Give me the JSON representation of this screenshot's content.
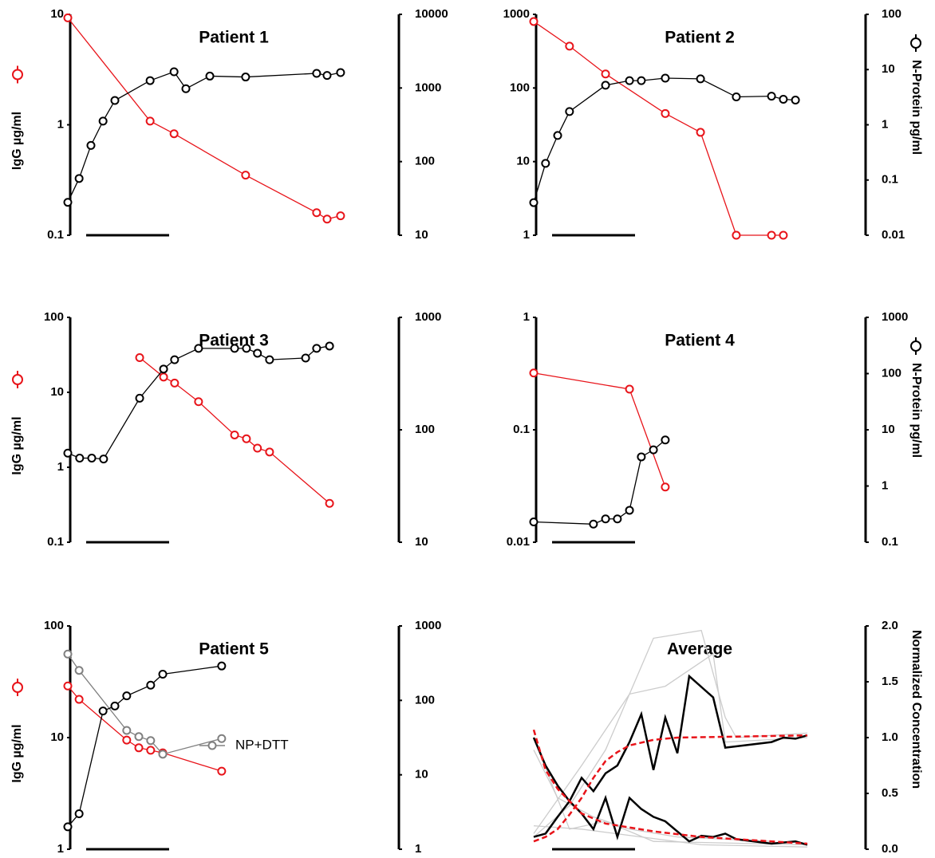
{
  "chart_data": [
    {
      "type": "line",
      "title": "Patient 1",
      "ylabel": "IgG µg/ml",
      "log_scale": true,
      "xlim": [
        0,
        100
      ],
      "ylim": [
        0.1,
        10
      ],
      "yticks": [
        0.1,
        1,
        10
      ],
      "y2lim": [
        10,
        10000
      ],
      "y2ticks": [
        10,
        100,
        1000,
        10000
      ],
      "series": [
        {
          "color": "#e8141a",
          "marker": "circle",
          "x": [
            0,
            29.9,
            38.6,
            64.6,
            90.4,
            94.2,
            99.1
          ],
          "values": [
            9.3,
            1.08,
            0.83,
            0.35,
            0.16,
            0.14,
            0.15
          ]
        },
        {
          "color": "#000000",
          "marker": "circle",
          "axis": "y2",
          "x": [
            0,
            4.1,
            8.4,
            12.8,
            17.1,
            29.9,
            38.6,
            42.9,
            51.6,
            64.6,
            90.4,
            94.2,
            99.1
          ],
          "values": [
            28,
            59,
            166,
            355,
            676,
            1260,
            1660,
            977,
            1450,
            1410,
            1580,
            1480,
            1620
          ]
        }
      ]
    },
    {
      "type": "line",
      "title": "Patient 2",
      "y2label": "N-Protein pg/ml",
      "log_scale": true,
      "xlim": [
        0,
        100
      ],
      "ylim": [
        1,
        1000
      ],
      "yticks": [
        1,
        10,
        100,
        1000
      ],
      "y2lim": [
        0.01,
        100
      ],
      "y2ticks": [
        0.01,
        0.1,
        1,
        10,
        100
      ],
      "series": [
        {
          "color": "#e8141a",
          "marker": "circle",
          "x": [
            0,
            13,
            26.1,
            47.8,
            60.6,
            73.6,
            86.4,
            90.7
          ],
          "values": [
            800,
            370,
            155,
            45,
            25,
            1,
            1,
            1
          ]
        },
        {
          "color": "#000000",
          "marker": "circle",
          "axis": "y2",
          "x": [
            0,
            4.3,
            8.7,
            13,
            26.1,
            34.8,
            39.1,
            47.8,
            60.6,
            73.6,
            86.4,
            90.7,
            95.1
          ],
          "values": [
            0.039,
            0.2,
            0.64,
            1.74,
            5.2,
            6.3,
            6.3,
            7,
            6.8,
            3.2,
            3.3,
            2.9,
            2.8
          ]
        }
      ]
    },
    {
      "type": "line",
      "title": "Patient 3",
      "ylabel": "IgG µg/ml",
      "log_scale": true,
      "xlim": [
        0,
        100
      ],
      "ylim": [
        0.1,
        100
      ],
      "yticks": [
        0.1,
        1,
        10,
        100
      ],
      "y2lim": [
        10,
        1000
      ],
      "y2ticks": [
        10,
        100,
        1000
      ],
      "series": [
        {
          "color": "#e8141a",
          "marker": "circle",
          "x": [
            26.1,
            34.8,
            38.8,
            47.5,
            60.6,
            64.9,
            68.9,
            73.3,
            95.1
          ],
          "values": [
            29,
            16,
            13.3,
            7.5,
            2.7,
            2.4,
            1.8,
            1.6,
            0.33
          ]
        },
        {
          "color": "#000000",
          "marker": "circle",
          "axis": "y2",
          "x": [
            0,
            4.3,
            8.7,
            13,
            26.1,
            34.8,
            38.8,
            47.5,
            60.6,
            64.9,
            68.9,
            73.3,
            86.4,
            90.4,
            95.1
          ],
          "values": [
            62,
            56,
            56,
            55,
            191,
            347,
            420,
            530,
            530,
            530,
            480,
            420,
            435,
            530,
            556
          ]
        }
      ]
    },
    {
      "type": "line",
      "title": "Patient 4",
      "y2label": "N-Protein pg/ml",
      "log_scale": true,
      "xlim": [
        0,
        100
      ],
      "ylim": [
        0.01,
        1
      ],
      "yticks": [
        0.01,
        0.1,
        1
      ],
      "y2lim": [
        0.1,
        1000
      ],
      "y2ticks": [
        0.1,
        1,
        10,
        100,
        1000
      ],
      "series": [
        {
          "color": "#e8141a",
          "marker": "circle",
          "x": [
            0,
            34.8,
            47.8
          ],
          "values": [
            0.32,
            0.23,
            0.031
          ]
        },
        {
          "color": "#000000",
          "marker": "circle",
          "axis": "y2",
          "x": [
            0,
            21.7,
            26.1,
            30.4,
            34.8,
            39.1,
            43.5,
            47.8
          ],
          "values": [
            0.23,
            0.21,
            0.26,
            0.26,
            0.37,
            3.3,
            4.4,
            6.6
          ]
        }
      ]
    },
    {
      "type": "line",
      "title": "Patient 5",
      "ylabel": "IgG µg/ml",
      "log_scale": true,
      "xlim": [
        0,
        100
      ],
      "ylim": [
        1,
        100
      ],
      "yticks": [
        1,
        10,
        100
      ],
      "y2lim": [
        1,
        1000
      ],
      "y2ticks": [
        1,
        10,
        100,
        1000
      ],
      "series": [
        {
          "color": "#e8141a",
          "marker": "circle",
          "x": [
            0,
            4.1,
            21.4,
            25.8,
            30.1,
            34.5,
            55.9
          ],
          "values": [
            29,
            22,
            9.5,
            8.1,
            7.7,
            7.3,
            5
          ]
        },
        {
          "name": "NP+DTT",
          "color": "#808080",
          "marker": "circle",
          "x": [
            0,
            4.1,
            21.4,
            25.8,
            30.1,
            34.5,
            55.9
          ],
          "values": [
            56,
            40,
            11.6,
            10.2,
            9.4,
            7.1,
            9.8
          ]
        },
        {
          "color": "#000000",
          "marker": "circle",
          "axis": "y2",
          "x": [
            0,
            4.1,
            12.8,
            17.1,
            21.4,
            30.1,
            34.5,
            55.9
          ],
          "values": [
            2,
            3,
            72,
            84,
            115,
            160,
            225,
            290
          ]
        }
      ]
    },
    {
      "type": "line",
      "title": "Average",
      "y2label": "Normalized Concentration",
      "log_scale": false,
      "xlim": [
        0,
        100
      ],
      "y2lim": [
        0,
        2
      ],
      "y2ticks": [
        {
          "value": 0,
          "label": "0.0"
        },
        0.5,
        {
          "value": 1,
          "label": "1.0"
        },
        1.5,
        {
          "value": 2,
          "label": "2.0"
        }
      ],
      "series": [
        {
          "color": "#cccccc",
          "axis": "y2",
          "x": [
            0,
            13,
            26.1,
            43.5,
            60.9,
            69.6,
            73.6,
            99.4
          ],
          "values": [
            0.11,
            0.39,
            0.89,
            1.89,
            1.96,
            1.18,
            1,
            1.04
          ]
        },
        {
          "color": "#cccccc",
          "axis": "y2",
          "x": [
            0,
            17.4,
            34.8,
            47.8,
            65.2,
            69.6,
            99.4
          ],
          "values": [
            0.14,
            0.75,
            1.39,
            1.46,
            1.75,
            0.96,
            1
          ]
        },
        {
          "color": "#cccccc",
          "axis": "y2",
          "x": [
            0,
            13,
            26.1,
            43.5,
            99.4
          ],
          "values": [
            1,
            0.18,
            0.25,
            0.07,
            0.04
          ]
        },
        {
          "color": "#cccccc",
          "axis": "y2",
          "x": [
            0,
            17.4,
            39.1,
            60.9,
            99.4
          ],
          "values": [
            0.21,
            0.18,
            0.11,
            0.04,
            0.02
          ]
        },
        {
          "color": "#cccccc",
          "axis": "y2",
          "x": [
            0,
            8.7,
            21.7,
            34.8,
            52.2,
            86.4
          ],
          "values": [
            0.89,
            0.46,
            0.29,
            0.18,
            0.11,
            0.07
          ]
        },
        {
          "color": "#000000",
          "axis": "y2",
          "x": [
            0,
            4.3,
            8.7,
            13,
            17.4,
            21.7,
            26.1,
            30.4,
            34.8,
            39.1,
            43.5,
            47.8,
            52.2,
            56.5,
            65.2,
            69.6,
            86.4,
            90.7,
            95.1,
            99.4
          ],
          "values": [
            0.11,
            0.14,
            0.29,
            0.43,
            0.64,
            0.52,
            0.68,
            0.75,
            0.96,
            1.21,
            0.71,
            1.18,
            0.86,
            1.55,
            1.36,
            0.91,
            0.96,
            1,
            0.99,
            1.02
          ]
        },
        {
          "color": "#000000",
          "axis": "y2",
          "x": [
            0,
            4.3,
            8.7,
            13,
            17.4,
            21.7,
            26.1,
            30.4,
            34.8,
            39.1,
            43.5,
            47.8,
            56.5,
            60.9,
            65.2,
            69.6,
            73.6,
            86.4,
            95.1,
            99.4
          ],
          "values": [
            1,
            0.75,
            0.57,
            0.43,
            0.32,
            0.18,
            0.46,
            0.11,
            0.46,
            0.36,
            0.29,
            0.25,
            0.07,
            0.12,
            0.11,
            0.14,
            0.09,
            0.05,
            0.07,
            0.04
          ]
        },
        {
          "color": "#e8141a",
          "dashed": true,
          "axis": "y2",
          "x": [
            0,
            4.3,
            8.7,
            13,
            17.4,
            21.7,
            26.1,
            30.4,
            34.8,
            43.5,
            52.2,
            99.4
          ],
          "values": [
            0.07,
            0.11,
            0.18,
            0.31,
            0.46,
            0.64,
            0.79,
            0.87,
            0.93,
            0.98,
            1,
            1.02
          ]
        },
        {
          "color": "#e8141a",
          "dashed": true,
          "axis": "y2",
          "x": [
            0,
            4.3,
            8.7,
            17.4,
            26.1,
            43.5,
            60.9,
            99.4
          ],
          "values": [
            1.07,
            0.71,
            0.54,
            0.32,
            0.23,
            0.16,
            0.11,
            0.05
          ]
        }
      ]
    }
  ]
}
